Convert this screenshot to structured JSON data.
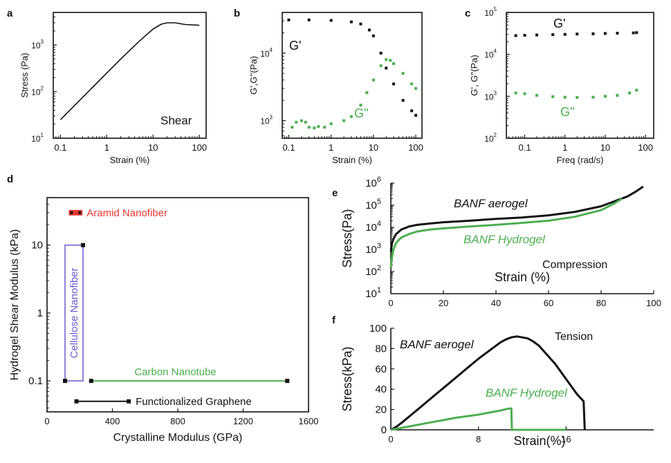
{
  "colors": {
    "green": "#4caf50",
    "black": "#111111",
    "red": "#e53935",
    "purple": "#6a5acd"
  },
  "chart_data": [
    {
      "panel": "a",
      "type": "line",
      "xlabel": "Strain (%)",
      "ylabel": "Stress (Pa)",
      "xscale": "log",
      "yscale": "log",
      "xlim": [
        0.07,
        140
      ],
      "ylim": [
        10,
        5000
      ],
      "xticks": [
        {
          "v": 0.1,
          "t": "0.1"
        },
        {
          "v": 1,
          "t": "1"
        },
        {
          "v": 10,
          "t": "10"
        },
        {
          "v": 100,
          "t": "100"
        }
      ],
      "yticks": [
        {
          "v": 10,
          "b": "10",
          "e": "1"
        },
        {
          "v": 100,
          "b": "10",
          "e": "2"
        },
        {
          "v": 1000,
          "b": "10",
          "e": "3"
        }
      ],
      "annotation": "Shear",
      "series": [
        {
          "color": "black",
          "style": "line",
          "x": [
            0.1,
            0.2,
            0.5,
            1,
            2,
            5,
            10,
            15,
            20,
            30,
            50,
            100
          ],
          "y": [
            25,
            50,
            125,
            250,
            500,
            1200,
            2200,
            2800,
            3000,
            3000,
            2750,
            2650
          ]
        }
      ]
    },
    {
      "panel": "b",
      "type": "scatter",
      "xlabel": "Strain (%)",
      "ylabel": "G',G''(Pa)",
      "xscale": "log",
      "yscale": "log",
      "xlim": [
        0.07,
        140
      ],
      "ylim": [
        550,
        40000
      ],
      "xticks": [
        {
          "v": 0.1,
          "t": "0.1"
        },
        {
          "v": 1,
          "t": "1"
        },
        {
          "v": 10,
          "t": "10"
        },
        {
          "v": 100,
          "t": "100"
        }
      ],
      "yticks": [
        {
          "v": 1000,
          "b": "10",
          "e": "3"
        },
        {
          "v": 10000,
          "b": "10",
          "e": "4"
        }
      ],
      "series": [
        {
          "name": "G'",
          "color": "black",
          "style": "points",
          "x": [
            0.1,
            0.3,
            1,
            3,
            5,
            8,
            10,
            15,
            20,
            30,
            50,
            80,
            100
          ],
          "y": [
            31000,
            31000,
            30500,
            29000,
            27000,
            22000,
            18000,
            10000,
            6000,
            3500,
            2000,
            1400,
            1200
          ]
        },
        {
          "name": "G''",
          "color": "green",
          "style": "points",
          "x": [
            0.12,
            0.15,
            0.2,
            0.25,
            0.3,
            0.4,
            0.5,
            0.7,
            1,
            2,
            3,
            5,
            7,
            10,
            15,
            20,
            25,
            30,
            50,
            80,
            100
          ],
          "y": [
            800,
            950,
            1000,
            950,
            800,
            780,
            820,
            800,
            900,
            1000,
            1150,
            1700,
            2600,
            4000,
            6500,
            8000,
            7800,
            7000,
            5000,
            3500,
            3000
          ]
        }
      ]
    },
    {
      "panel": "c",
      "type": "scatter",
      "xlabel": "Freq (rad/s)",
      "ylabel": "G', G''(Pa)",
      "xscale": "log",
      "yscale": "log",
      "xlim": [
        0.035,
        160
      ],
      "ylim": [
        100,
        100000
      ],
      "xticks": [
        {
          "v": 0.1,
          "t": "0.1"
        },
        {
          "v": 1,
          "t": "1"
        },
        {
          "v": 10,
          "t": "10"
        },
        {
          "v": 100,
          "t": "100"
        }
      ],
      "yticks": [
        {
          "v": 100,
          "b": "10",
          "e": "2"
        },
        {
          "v": 1000,
          "b": "10",
          "e": "3"
        },
        {
          "v": 10000,
          "b": "10",
          "e": "4"
        },
        {
          "v": 100000,
          "b": "10",
          "e": "5"
        }
      ],
      "series": [
        {
          "name": "G'",
          "color": "black",
          "style": "points",
          "x": [
            0.06,
            0.1,
            0.2,
            0.5,
            1,
            2,
            5,
            10,
            20,
            50,
            60
          ],
          "y": [
            28000,
            28500,
            29000,
            29500,
            30000,
            30500,
            31000,
            31500,
            32000,
            32500,
            33000
          ]
        },
        {
          "name": "G''",
          "color": "green",
          "style": "points",
          "x": [
            0.06,
            0.1,
            0.2,
            0.5,
            1,
            2,
            5,
            10,
            20,
            40,
            60
          ],
          "y": [
            1200,
            1150,
            1050,
            980,
            950,
            940,
            950,
            1000,
            1050,
            1200,
            1400
          ]
        }
      ]
    },
    {
      "panel": "d",
      "type": "scatter",
      "xlabel": "Crystalline Modulus (GPa)",
      "ylabel": "Hydrogel Shear Modulus (kPa)",
      "xscale": "linear",
      "yscale": "log",
      "xlim": [
        0,
        1600
      ],
      "ylim": [
        0.035,
        50
      ],
      "xticks": [
        {
          "v": 0,
          "t": "0"
        },
        {
          "v": 400,
          "t": "400"
        },
        {
          "v": 800,
          "t": "800"
        },
        {
          "v": 1200,
          "t": "1200"
        },
        {
          "v": 1600,
          "t": "1600"
        }
      ],
      "yticks": [
        {
          "v": 0.1,
          "t": "0.1"
        },
        {
          "v": 1,
          "t": "1"
        },
        {
          "v": 10,
          "t": "10"
        }
      ],
      "items": [
        {
          "label": "Aramid Nanofiber",
          "color": "red",
          "x": [
            150,
            200
          ],
          "y": [
            30,
            30
          ]
        },
        {
          "label": "Cellulose Nanofiber",
          "color": "purple",
          "x": [
            110,
            220
          ],
          "y": [
            0.1,
            10
          ]
        },
        {
          "label": "Carbon Nanotube",
          "color": "green",
          "x": [
            270,
            1470
          ],
          "y": [
            0.1,
            0.1
          ]
        },
        {
          "label": "Functionalized Graphene",
          "color": "black",
          "x": [
            180,
            500
          ],
          "y": [
            0.05,
            0.05
          ]
        }
      ]
    },
    {
      "panel": "e",
      "type": "line",
      "xlabel": "Strain (%)",
      "ylabel": "Stress(Pa)",
      "xscale": "linear",
      "yscale": "log",
      "xlim": [
        0,
        100
      ],
      "ylim": [
        10,
        1000000
      ],
      "xticks": [
        {
          "v": 0,
          "t": "0"
        },
        {
          "v": 20,
          "t": "20"
        },
        {
          "v": 40,
          "t": "40"
        },
        {
          "v": 60,
          "t": "60"
        },
        {
          "v": 80,
          "t": "80"
        },
        {
          "v": 100,
          "t": "100"
        }
      ],
      "yticks": [
        {
          "v": 10,
          "b": "10",
          "e": "1"
        },
        {
          "v": 100,
          "b": "10",
          "e": "2"
        },
        {
          "v": 1000,
          "b": "10",
          "e": "3"
        },
        {
          "v": 10000,
          "b": "10",
          "e": "4"
        },
        {
          "v": 100000,
          "b": "10",
          "e": "5"
        },
        {
          "v": 1000000,
          "b": "10",
          "e": "6"
        }
      ],
      "annotation": "Compression",
      "series": [
        {
          "name": "BANF aerogel",
          "color": "black",
          "style": "line",
          "x": [
            0,
            0.5,
            1,
            2,
            4,
            7,
            10,
            15,
            20,
            30,
            40,
            50,
            60,
            70,
            80,
            85,
            90,
            93,
            96
          ],
          "y": [
            800,
            2000,
            3000,
            5000,
            8000,
            11000,
            13000,
            15000,
            17000,
            20000,
            24000,
            28000,
            35000,
            50000,
            90000,
            150000,
            250000,
            400000,
            700000
          ]
        },
        {
          "name": "BANF Hydrogel",
          "color": "green",
          "style": "line",
          "x": [
            0,
            0.5,
            1,
            2,
            4,
            7,
            10,
            15,
            20,
            30,
            40,
            50,
            60,
            70,
            80,
            85,
            88
          ],
          "y": [
            150,
            500,
            1000,
            2000,
            3500,
            5000,
            6500,
            8000,
            9000,
            11000,
            13000,
            16000,
            20000,
            30000,
            60000,
            120000,
            200000
          ]
        }
      ]
    },
    {
      "panel": "f",
      "type": "line",
      "xlabel": "Strain(%)",
      "ylabel": "Stress(kPa)",
      "xscale": "linear",
      "yscale": "linear",
      "xlim": [
        0,
        24
      ],
      "ylim": [
        0,
        100
      ],
      "xticks": [
        {
          "v": 0,
          "t": "0"
        },
        {
          "v": 8,
          "t": "8"
        },
        {
          "v": 16,
          "t": "16"
        }
      ],
      "yticks": [
        {
          "v": 0,
          "t": "0"
        },
        {
          "v": 20,
          "t": "20"
        },
        {
          "v": 40,
          "t": "40"
        },
        {
          "v": 60,
          "t": "60"
        },
        {
          "v": 80,
          "t": "80"
        },
        {
          "v": 100,
          "t": "100"
        }
      ],
      "annotation": "Tension",
      "series": [
        {
          "name": "BANF aerogel",
          "color": "black",
          "style": "line",
          "x": [
            0,
            0.5,
            1,
            2,
            3,
            4,
            5,
            6,
            7,
            8,
            9,
            10,
            10.5,
            11,
            11.5,
            12,
            12.5,
            13,
            13.5,
            14,
            15,
            16,
            17,
            17.6,
            17.7
          ],
          "y": [
            0,
            3,
            7,
            16,
            25,
            34,
            43,
            52,
            61,
            70,
            78,
            86,
            89,
            91,
            92,
            91,
            90,
            87,
            83,
            77,
            65,
            50,
            35,
            28,
            0
          ]
        },
        {
          "name": "BANF Hydrogel",
          "color": "green",
          "style": "line",
          "x": [
            0,
            1,
            2,
            4,
            6,
            8,
            9,
            10,
            10.8,
            11,
            11.05,
            16
          ],
          "y": [
            0,
            2,
            4,
            8,
            12,
            15,
            17,
            19,
            21,
            21,
            0,
            0
          ]
        }
      ]
    }
  ],
  "labels": {
    "a": "a",
    "b": "b",
    "c": "c",
    "d": "d",
    "e": "e",
    "f": "f",
    "b_g1": "G'",
    "b_g2": "G''",
    "c_g1": "G'",
    "c_g2": "G''",
    "e_aerogel": "BANF aerogel",
    "e_hydrogel": "BANF Hydrogel",
    "f_aerogel": "BANF aerogel",
    "f_hydrogel": "BANF Hydrogel"
  }
}
